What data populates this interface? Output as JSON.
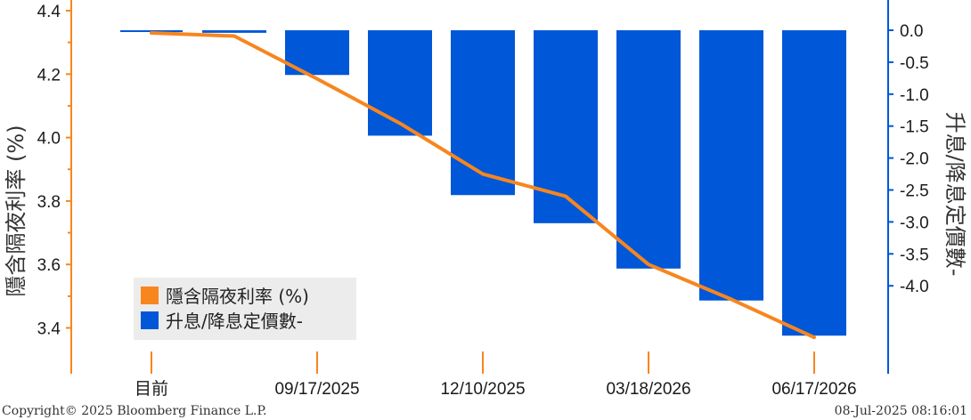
{
  "chart_data": {
    "type": "bar+line",
    "categories": [
      "目前",
      "",
      "09/17/2025",
      "",
      "12/10/2025",
      "",
      "03/18/2026",
      "",
      "06/17/2026"
    ],
    "x_tick_labels": [
      "目前",
      "09/17/2025",
      "12/10/2025",
      "03/18/2026",
      "06/17/2026"
    ],
    "series": [
      {
        "name": "隱含隔夜利率 (%)",
        "type": "line",
        "axis": "left",
        "color": "#f7861f",
        "values": [
          4.33,
          4.32,
          4.185,
          4.045,
          3.885,
          3.815,
          3.6,
          3.49,
          3.37
        ]
      },
      {
        "name": "升息/降息定價數-",
        "type": "bar",
        "axis": "right",
        "color": "#0057d8",
        "values": [
          0.0,
          -0.04,
          -0.7,
          -1.65,
          -2.58,
          -3.02,
          -3.73,
          -4.23,
          -4.78
        ]
      }
    ],
    "ylabel_left": "隱含隔夜利率 (%)",
    "ylabel_right": "升息/降息定價數-",
    "y_left": {
      "range": [
        3.31,
        4.4
      ],
      "ticks": [
        "4.4",
        "4.2",
        "4.0",
        "3.8",
        "3.6",
        "3.4"
      ]
    },
    "y_right": {
      "range": [
        -5.1,
        0.0
      ],
      "ticks": [
        "0.0",
        "-0.5",
        "-1.0",
        "-1.5",
        "-2.0",
        "-2.5",
        "-3.0",
        "-3.5",
        "-4.0"
      ]
    },
    "legend_position": "bottom-left",
    "grid": false
  },
  "footer": {
    "copyright": "Copyright© 2025 Bloomberg Finance L.P.",
    "timestamp": "08-Jul-2025 08:16:01"
  },
  "colors": {
    "left_axis": "#f7861f",
    "right_axis": "#0057d8"
  }
}
